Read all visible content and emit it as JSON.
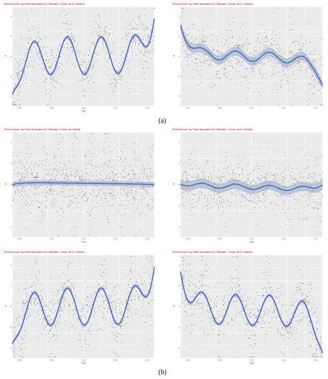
{
  "captions": {
    "a": "(a)",
    "b": "(b)"
  },
  "colors": {
    "panel_bg": "#ebebeb",
    "grid": "#ffffff",
    "points": "#333333",
    "smooth": "#4a6fc4",
    "band": "#9aa8c2",
    "title": "#b00000",
    "xlabel": "#3333cc",
    "ylabel": "#cc2222"
  },
  "chart_data": [
    {
      "type": "scatter",
      "id": "p1",
      "title": "Plot of Accel. by Time Illustrated (2.0 Blades, X Axis, W.S.=15m/s)",
      "xlabel": "t (s)",
      "ylabel": "a",
      "xticks": [
        "0.00",
        "0.05",
        "0.10",
        "0.15",
        "0.20"
      ],
      "yticks": [
        "4",
        "2",
        "0",
        "-2",
        "-4"
      ],
      "smooth": {
        "base": 0.02,
        "drift": 0,
        "amp": 0.42,
        "periods": 4.2,
        "phase": 3.9,
        "start": -0.85,
        "end": 0.85,
        "noise": 0.35,
        "band": 0
      },
      "seed": 11,
      "n": 900
    },
    {
      "type": "scatter",
      "id": "p2",
      "title": "Plot of Accel. by Time Illustrated (2.0 Blades, X Axis, W.S.=18m/s)",
      "xlabel": "",
      "ylabel": "a",
      "xticks": [
        "0.00",
        "0.05",
        "0.10",
        "0.15",
        "0.20"
      ],
      "yticks": [
        "4",
        "2",
        "0",
        "-2",
        "-4"
      ],
      "smooth": {
        "base": 0.05,
        "drift": -0.1,
        "amp": 0.11,
        "periods": 4.2,
        "phase": 3.9,
        "start": 0.7,
        "end": -0.65,
        "noise": 0.35,
        "band": 0.06
      },
      "seed": 23,
      "n": 900
    },
    {
      "type": "scatter",
      "id": "p3",
      "title": "Plot of Accel. by Time Illustrated (2.0 Blades, Y Axis, No Wind)",
      "xlabel": "t (s)",
      "ylabel": "a",
      "xticks": [
        "0.00",
        "0.05",
        "0.10",
        "0.15",
        "0.20"
      ],
      "yticks": [
        "2",
        "1",
        "0",
        "-1",
        "-2"
      ],
      "smooth": {
        "base": 0.05,
        "drift": -0.04,
        "amp": 0.0,
        "periods": 0,
        "phase": 0,
        "start": 0,
        "end": 0,
        "noise": 0.4,
        "band": 0.015
      },
      "seed": 37,
      "n": 1100
    },
    {
      "type": "scatter",
      "id": "p4",
      "title": "Plot of Accel. by Time Illustrated (2.0 Blades, Y Axis, W.S.=10m/s)",
      "xlabel": "t (s)",
      "ylabel": "a",
      "xticks": [
        "0.00",
        "0.05",
        "0.10",
        "0.15",
        "0.20"
      ],
      "yticks": [
        "4",
        "2",
        "0",
        "-2",
        "-4"
      ],
      "smooth": {
        "base": 0.0,
        "drift": -0.1,
        "amp": 0.05,
        "periods": 4.2,
        "phase": 3.9,
        "start": 0,
        "end": 0,
        "noise": 0.33,
        "band": 0.06
      },
      "seed": 41,
      "n": 900
    },
    {
      "type": "scatter",
      "id": "p5",
      "title": "Plot of Accel. by Time Illustrated (2.0 Blades, Y Axis, W.S.=15m/s)",
      "xlabel": "t (s)",
      "ylabel": "a",
      "xticks": [
        "0.00",
        "0.05",
        "0.10",
        "0.15",
        "0.20"
      ],
      "yticks": [
        "4",
        "2",
        "0",
        "-2",
        "-4"
      ],
      "smooth": {
        "base": 0.0,
        "drift": 0,
        "amp": 0.4,
        "periods": 4.2,
        "phase": 3.9,
        "start": -0.8,
        "end": 0.85,
        "noise": 0.35,
        "band": 0
      },
      "seed": 53,
      "n": 900
    },
    {
      "type": "scatter",
      "id": "p6",
      "title": "Plot of Accel. by Time Illustrated (2.0 Blades, Y Axis, W.S.=18m/s)",
      "xlabel": "t (s)",
      "ylabel": "a",
      "xticks": [
        "0.00",
        "0.05",
        "0.10",
        "0.15",
        "0.20"
      ],
      "yticks": [
        "4",
        "2",
        "0",
        "-2",
        "-4"
      ],
      "smooth": {
        "base": -0.05,
        "drift": -0.05,
        "amp": 0.33,
        "periods": 4.2,
        "phase": 3.9,
        "start": 0.75,
        "end": -1.0,
        "noise": 0.35,
        "band": 0
      },
      "seed": 67,
      "n": 900
    }
  ]
}
